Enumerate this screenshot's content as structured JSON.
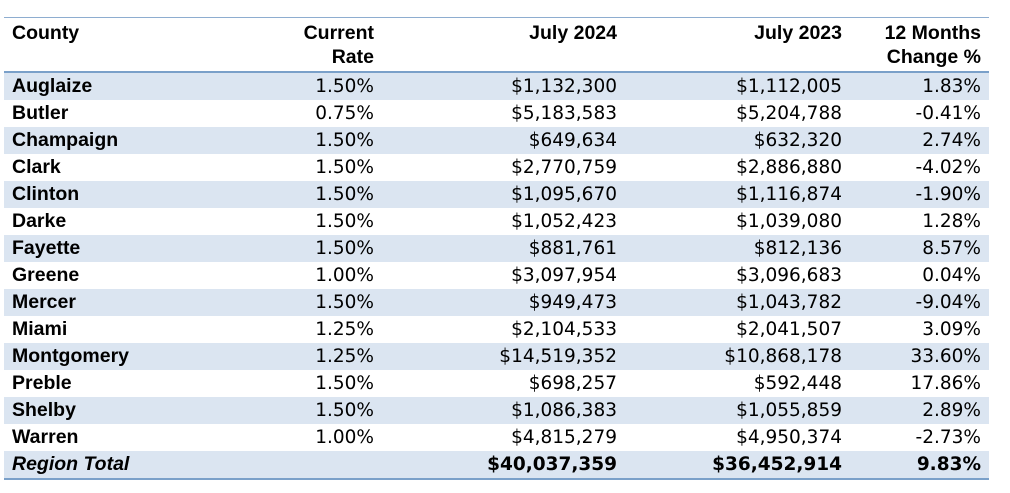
{
  "headers": {
    "county": "County",
    "rate_line1": "Current",
    "rate_line2": "Rate",
    "july2024": "July 2024",
    "july2023": "July 2023",
    "change_line1": "12 Months",
    "change_line2": "Change %"
  },
  "rows": [
    {
      "county": "Auglaize",
      "rate": "1.50%",
      "july2024": "$1,132,300",
      "july2023": "$1,112,005",
      "change": "1.83%"
    },
    {
      "county": "Butler",
      "rate": "0.75%",
      "july2024": "$5,183,583",
      "july2023": "$5,204,788",
      "change": "-0.41%"
    },
    {
      "county": "Champaign",
      "rate": "1.50%",
      "july2024": "$649,634",
      "july2023": "$632,320",
      "change": "2.74%"
    },
    {
      "county": "Clark",
      "rate": "1.50%",
      "july2024": "$2,770,759",
      "july2023": "$2,886,880",
      "change": "-4.02%"
    },
    {
      "county": "Clinton",
      "rate": "1.50%",
      "july2024": "$1,095,670",
      "july2023": "$1,116,874",
      "change": "-1.90%"
    },
    {
      "county": "Darke",
      "rate": "1.50%",
      "july2024": "$1,052,423",
      "july2023": "$1,039,080",
      "change": "1.28%"
    },
    {
      "county": "Fayette",
      "rate": "1.50%",
      "july2024": "$881,761",
      "july2023": "$812,136",
      "change": "8.57%"
    },
    {
      "county": "Greene",
      "rate": "1.00%",
      "july2024": "$3,097,954",
      "july2023": "$3,096,683",
      "change": "0.04%"
    },
    {
      "county": "Mercer",
      "rate": "1.50%",
      "july2024": "$949,473",
      "july2023": "$1,043,782",
      "change": "-9.04%"
    },
    {
      "county": "Miami",
      "rate": "1.25%",
      "july2024": "$2,104,533",
      "july2023": "$2,041,507",
      "change": "3.09%"
    },
    {
      "county": "Montgomery",
      "rate": "1.25%",
      "july2024": "$14,519,352",
      "july2023": "$10,868,178",
      "change": "33.60%"
    },
    {
      "county": "Preble",
      "rate": "1.50%",
      "july2024": "$698,257",
      "july2023": "$592,448",
      "change": "17.86%"
    },
    {
      "county": "Shelby",
      "rate": "1.50%",
      "july2024": "$1,086,383",
      "july2023": "$1,055,859",
      "change": "2.89%"
    },
    {
      "county": "Warren",
      "rate": "1.00%",
      "july2024": "$4,815,279",
      "july2023": "$4,950,374",
      "change": "-2.73%"
    }
  ],
  "total": {
    "county": "Region Total",
    "rate": "",
    "july2024": "$40,037,359",
    "july2023": "$36,452,914",
    "change": "9.83%"
  }
}
